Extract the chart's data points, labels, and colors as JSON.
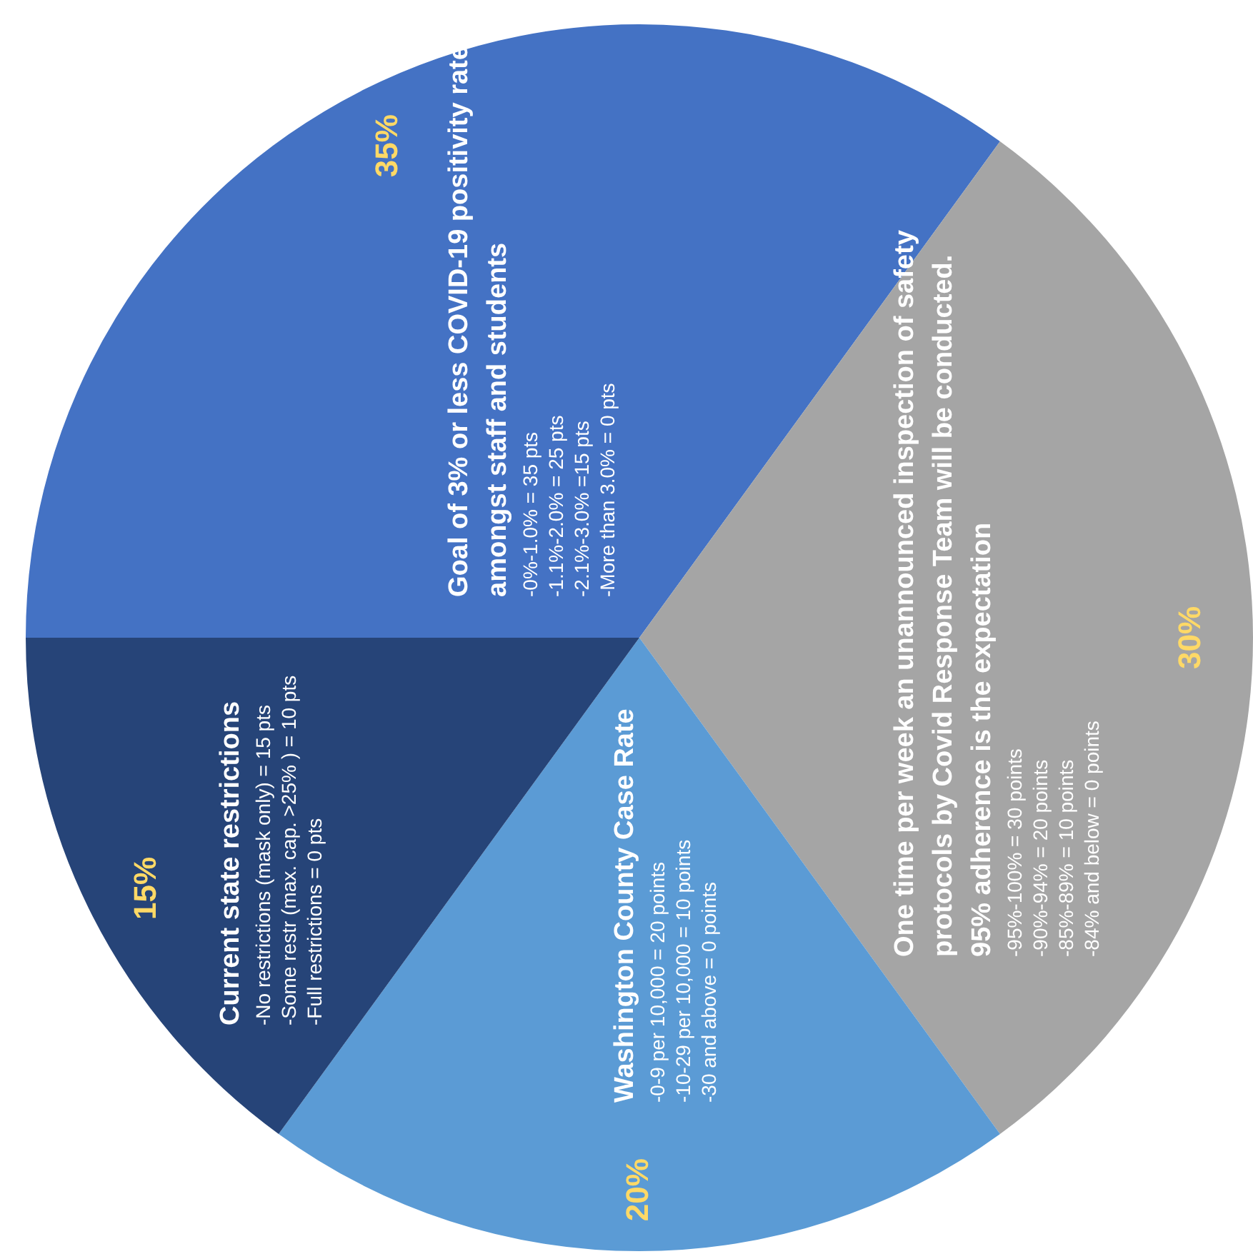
{
  "chart_data": {
    "type": "pie",
    "categories": [
      "Goal of 3% or less COVID-19 positivity rate amongst staff and students",
      "One time per week an unannounced inspection of safety protocols by Covid Response Team will be conducted.  95% adherence is the expectation",
      "Washington County Case Rate",
      "Current state restrictions"
    ],
    "values": [
      35,
      30,
      20,
      15
    ],
    "colors": [
      "#4472c4",
      "#a5a5a5",
      "#5b9bd5",
      "#264478"
    ],
    "value_labels": [
      "35%",
      "30%",
      "20%",
      "15%"
    ],
    "annotations": [
      "-0%-1.0% = 35 pts\n-1.1%-2.0% = 25 pts\n-2.1%-3.0% =15 pts\n-More than 3.0% = 0 pts",
      "-95%-100% = 30 points\n-90%-94% = 20 points\n-85%-89% = 10 points\n-84% and below = 0 points",
      "-0-9 per 10,000 = 20 points\n-10-29 per 10,000 = 10 points\n-30 and above = 0 points",
      "-No restrictions (mask only) = 15 pts\n-Some restr (max. cap. >25% ) = 10 pts\n-Full restrictions = 0 pts"
    ]
  }
}
